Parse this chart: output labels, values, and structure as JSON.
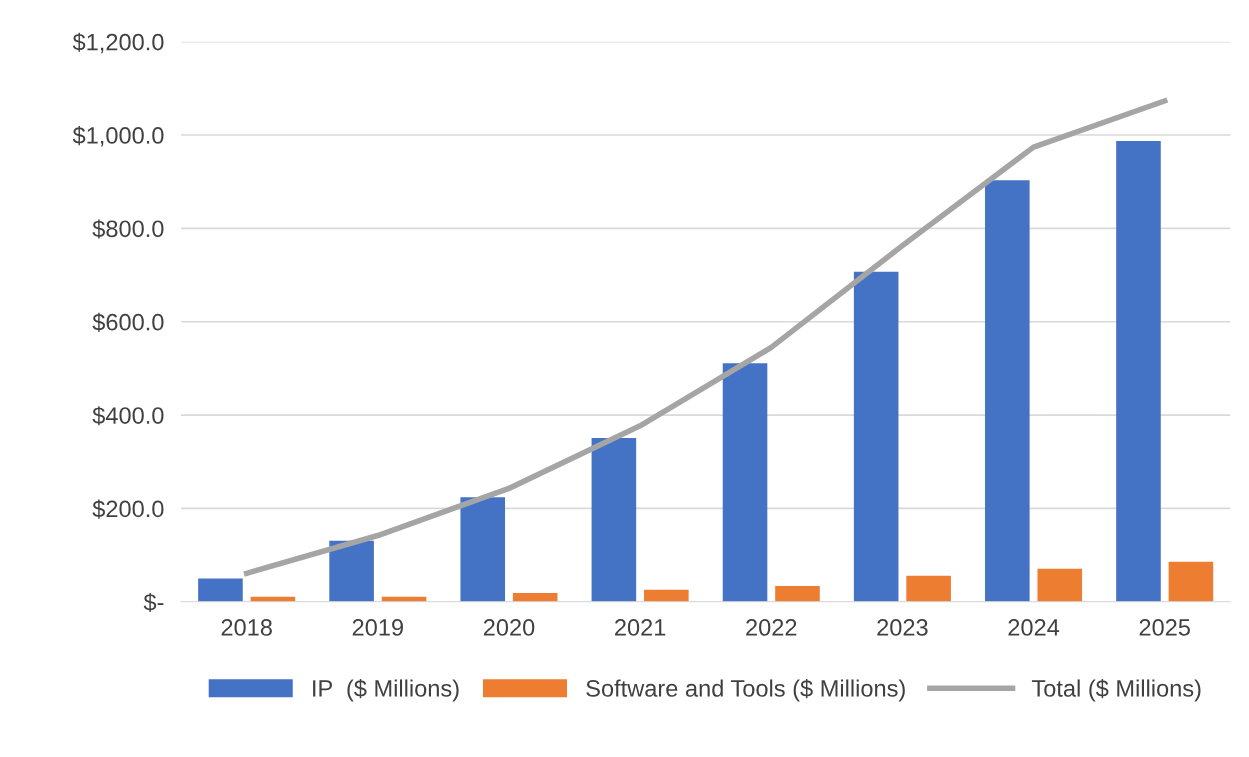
{
  "chart_data": {
    "type": "bar",
    "categories": [
      "2018",
      "2019",
      "2020",
      "2021",
      "2022",
      "2023",
      "2024",
      "2025"
    ],
    "series": [
      {
        "name": "IP  ($ Millions)",
        "color": "#4472c4",
        "values": [
          50,
          131,
          224,
          351,
          511,
          707,
          903,
          987
        ]
      },
      {
        "name": "Software and Tools ($ Millions)",
        "color": "#ed7d31",
        "values": [
          11,
          11,
          19,
          26,
          34,
          56,
          71,
          86
        ]
      },
      {
        "name": "Total ($ Millions)",
        "color": "#a5a5a5",
        "type": "line",
        "values": [
          61,
          142,
          243,
          377,
          545,
          763,
          974,
          1073
        ]
      }
    ],
    "ylim": [
      0,
      1200
    ],
    "yticks": [
      {
        "value": 0,
        "label": "$-"
      },
      {
        "value": 200,
        "label": "$200.0"
      },
      {
        "value": 400,
        "label": "$400.0"
      },
      {
        "value": 600,
        "label": "$600.0"
      },
      {
        "value": 800,
        "label": "$800.0"
      },
      {
        "value": 1000,
        "label": "$1,000.0"
      },
      {
        "value": 1200,
        "label": "$1,200.0"
      }
    ],
    "grid": "y",
    "legend": "bottom",
    "marker": "none",
    "line_style": "solid"
  }
}
